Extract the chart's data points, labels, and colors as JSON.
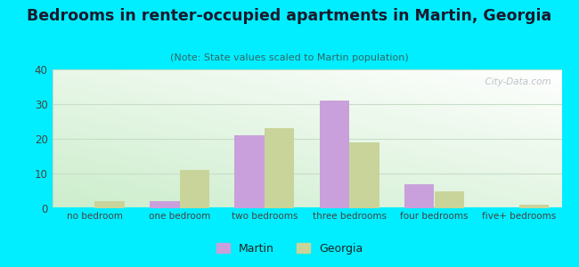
{
  "title": "Bedrooms in renter-occupied apartments in Martin, Georgia",
  "subtitle": "(Note: State values scaled to Martin population)",
  "categories": [
    "no bedroom",
    "one bedroom",
    "two bedrooms",
    "three bedrooms",
    "four bedrooms",
    "five+ bedrooms"
  ],
  "martin_values": [
    0,
    2,
    21,
    31,
    7,
    0
  ],
  "georgia_values": [
    2,
    11,
    23,
    19,
    5,
    1
  ],
  "martin_color": "#c9a0dc",
  "georgia_color": "#c8d49a",
  "background_outer": "#00eeff",
  "ylim": [
    0,
    40
  ],
  "yticks": [
    0,
    10,
    20,
    30,
    40
  ],
  "bar_width": 0.35,
  "watermark": "  City-Data.com",
  "legend_martin": "Martin",
  "legend_georgia": "Georgia",
  "title_color": "#1a1a2e",
  "subtitle_color": "#336666",
  "tick_color": "#444444",
  "grid_color": "#c8ddc8"
}
